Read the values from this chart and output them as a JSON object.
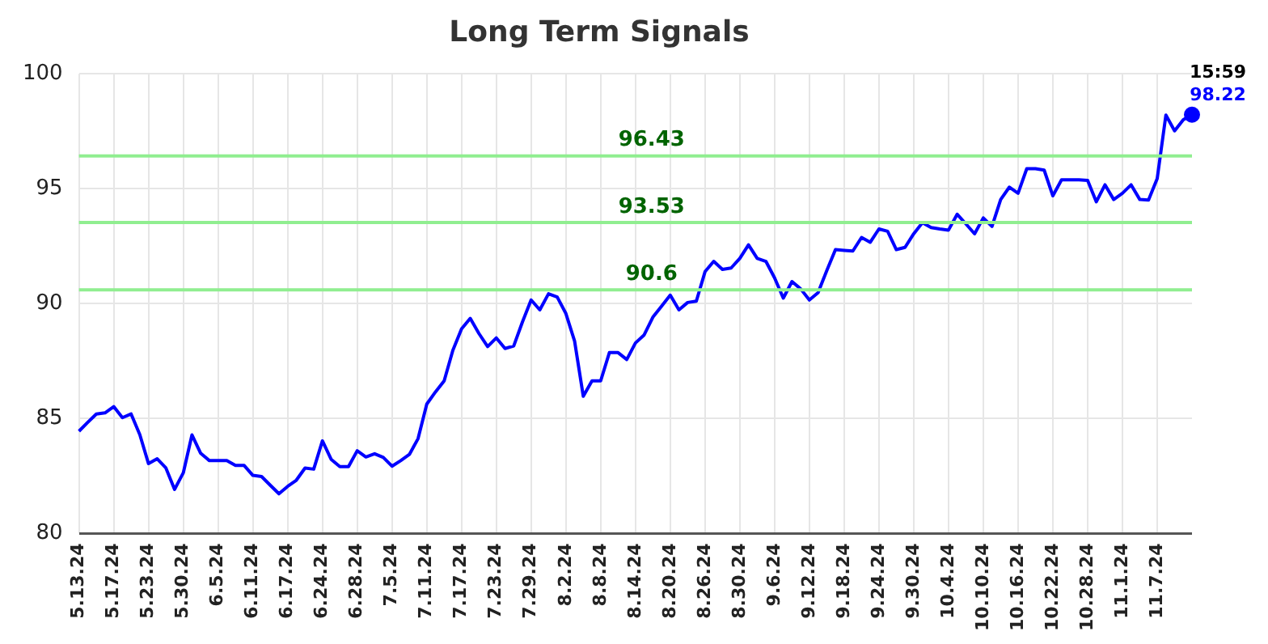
{
  "chart_data": {
    "type": "line",
    "title": "Long Term Signals",
    "categories": [
      "5.13.24",
      null,
      null,
      null,
      "5.17.24",
      null,
      null,
      null,
      "5.23.24",
      null,
      null,
      null,
      "5.30.24",
      null,
      null,
      null,
      "6.5.24",
      null,
      null,
      null,
      "6.11.24",
      null,
      null,
      null,
      "6.17.24",
      null,
      null,
      null,
      "6.24.24",
      null,
      null,
      null,
      "6.28.24",
      null,
      null,
      null,
      "7.5.24",
      null,
      null,
      null,
      "7.11.24",
      null,
      null,
      null,
      "7.17.24",
      null,
      null,
      null,
      "7.23.24",
      null,
      null,
      null,
      "7.29.24",
      null,
      null,
      null,
      "8.2.24",
      null,
      null,
      null,
      "8.8.24",
      null,
      null,
      null,
      "8.14.24",
      null,
      null,
      null,
      "8.20.24",
      null,
      null,
      null,
      "8.26.24",
      null,
      null,
      null,
      "8.30.24",
      null,
      null,
      null,
      "9.6.24",
      null,
      null,
      null,
      "9.12.24",
      null,
      null,
      null,
      "9.18.24",
      null,
      null,
      null,
      "9.24.24",
      null,
      null,
      null,
      "9.30.24",
      null,
      null,
      null,
      "10.4.24",
      null,
      null,
      null,
      "10.10.24",
      null,
      null,
      null,
      "10.16.24",
      null,
      null,
      null,
      "10.22.24",
      null,
      null,
      null,
      "10.28.24",
      null,
      null,
      null,
      "11.1.24",
      null,
      null,
      null,
      "11.7.24",
      null,
      null,
      null,
      null
    ],
    "series": [
      {
        "color": "#0000ff",
        "values": [
          84.45,
          84.83,
          85.2,
          85.25,
          85.52,
          85.04,
          85.2,
          84.3,
          83.04,
          83.25,
          82.85,
          81.92,
          82.64,
          84.29,
          83.49,
          83.17,
          83.17,
          83.17,
          82.96,
          82.96,
          82.53,
          82.48,
          82.1,
          81.73,
          82.05,
          82.32,
          82.85,
          82.8,
          84.03,
          83.23,
          82.91,
          82.91,
          83.6,
          83.33,
          83.47,
          83.31,
          82.93,
          83.17,
          83.44,
          84.13,
          85.63,
          86.16,
          86.64,
          87.97,
          88.9,
          89.36,
          88.7,
          88.13,
          88.51,
          88.05,
          88.16,
          89.2,
          90.16,
          89.73,
          90.43,
          90.29,
          89.57,
          88.37,
          85.97,
          86.64,
          86.64,
          87.87,
          87.87,
          87.57,
          88.29,
          88.64,
          89.41,
          89.89,
          90.37,
          89.73,
          90.05,
          90.11,
          91.39,
          91.84,
          91.49,
          91.55,
          91.97,
          92.56,
          91.97,
          91.84,
          91.12,
          90.24,
          90.96,
          90.64,
          90.16,
          90.48,
          91.44,
          92.35,
          92.32,
          92.29,
          92.88,
          92.67,
          93.25,
          93.15,
          92.35,
          92.45,
          93.04,
          93.52,
          93.31,
          93.25,
          93.2,
          93.89,
          93.47,
          93.04,
          93.73,
          93.36,
          94.53,
          95.07,
          94.8,
          95.87,
          95.87,
          95.81,
          94.69,
          95.39,
          95.39,
          95.39,
          95.36,
          94.43,
          95.17,
          94.53,
          94.8,
          95.17,
          94.53,
          94.51,
          95.44,
          98.2,
          97.52,
          98.0,
          98.22
        ],
        "value_labels": [
          null,
          null,
          null,
          null,
          null,
          null,
          null,
          null,
          null,
          null,
          null,
          null,
          null,
          null,
          null,
          null,
          null,
          null,
          null,
          null,
          null,
          null,
          null,
          null,
          null,
          null,
          null,
          null,
          null,
          null,
          null,
          null,
          null,
          null,
          null,
          null,
          null,
          null,
          null,
          null,
          null,
          null,
          null,
          null,
          null,
          null,
          null,
          null,
          null,
          null,
          null,
          null,
          null,
          null,
          null,
          null,
          null,
          null,
          null,
          null,
          null,
          null,
          null,
          null,
          null,
          null,
          null,
          null,
          null,
          null,
          null,
          null,
          null,
          null,
          null,
          null,
          null,
          null,
          null,
          null,
          null,
          null,
          null,
          null,
          null,
          null,
          null,
          null,
          null,
          null,
          null,
          null,
          null,
          null,
          null,
          null,
          null,
          null,
          null,
          null,
          null,
          null,
          null,
          null,
          null,
          null,
          null,
          null,
          null,
          null,
          null,
          null,
          null,
          null,
          null,
          null,
          null,
          null,
          null,
          null,
          null,
          null,
          null,
          null,
          null,
          null,
          null,
          null,
          "98.22"
        ]
      }
    ],
    "ylim": [
      80,
      100
    ],
    "yticks": [
      80,
      85,
      90,
      95,
      100
    ],
    "grid": true,
    "legend": false,
    "ref_lines": [
      {
        "axis": "y",
        "value": 96.43,
        "label": "96.43",
        "color": "#90ee90"
      },
      {
        "axis": "y",
        "value": 93.53,
        "label": "93.53",
        "color": "#90ee90"
      },
      {
        "axis": "y",
        "value": 90.6,
        "label": "90.6",
        "color": "#90ee90"
      }
    ],
    "annotations": [
      "15:59"
    ]
  }
}
